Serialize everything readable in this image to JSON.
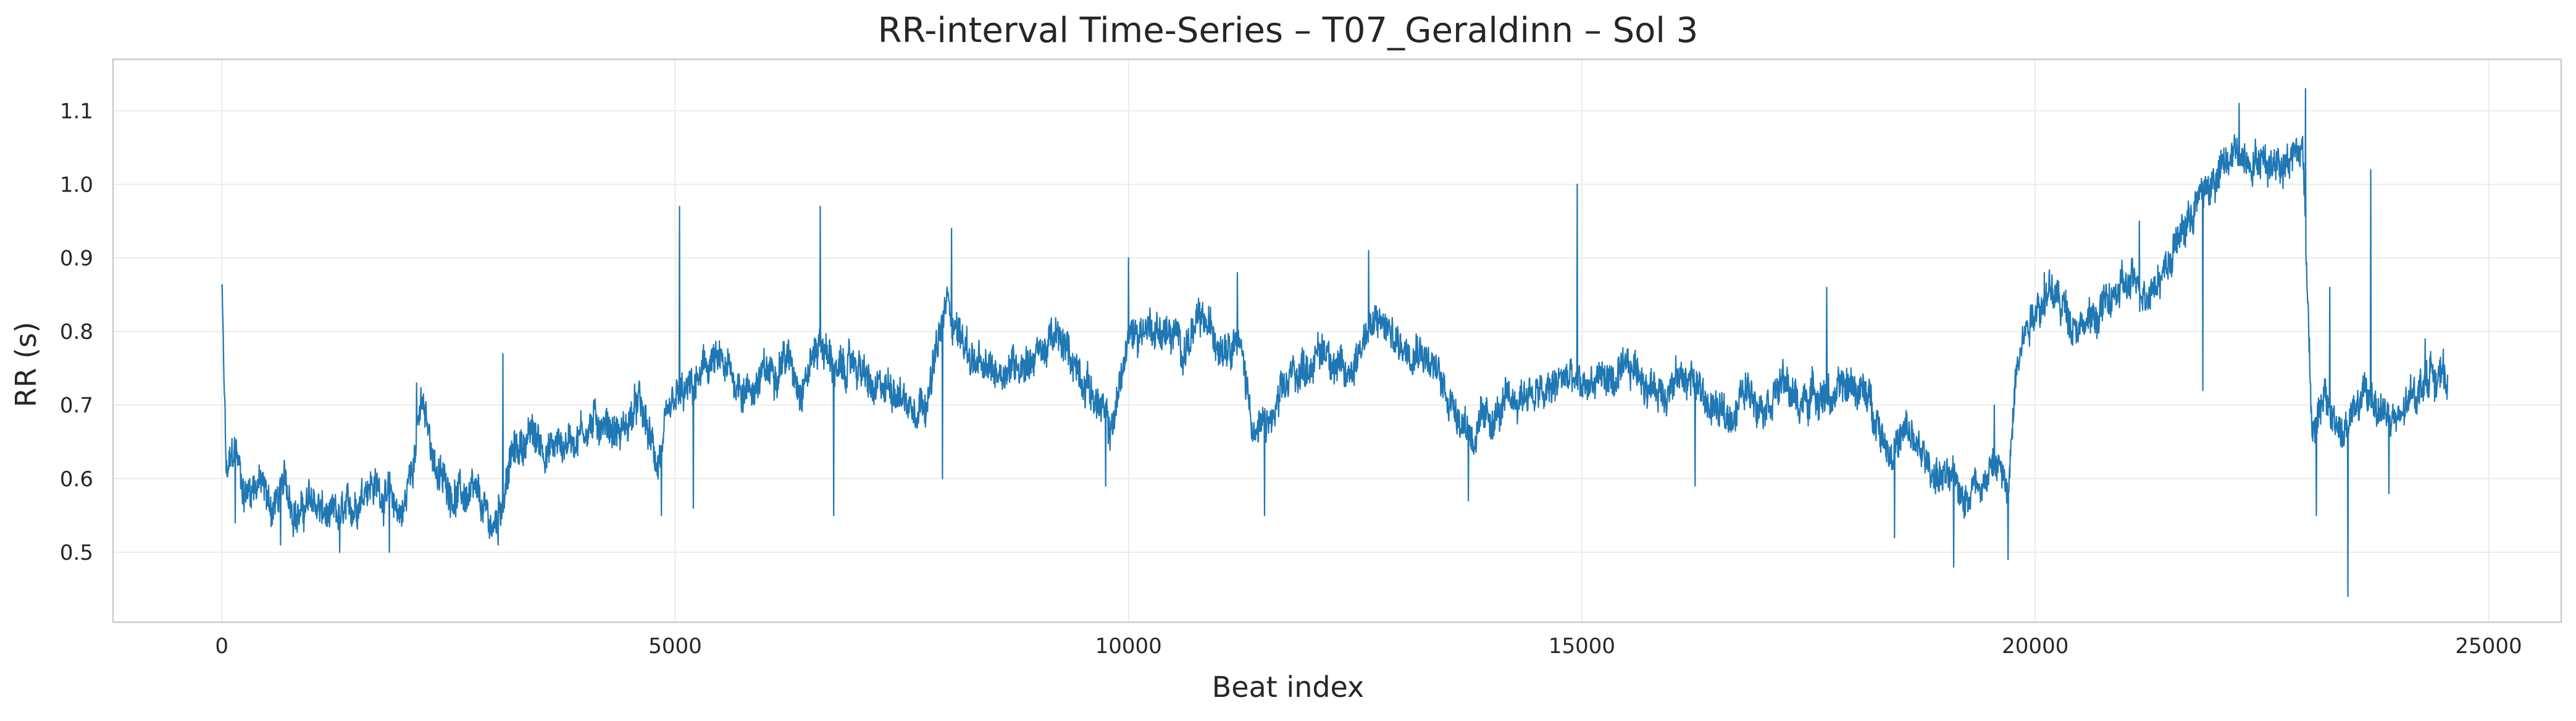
{
  "chart_data": {
    "type": "line",
    "title": "RR-interval Time-Series – T07_Geraldinn – Sol 3",
    "xlabel": "Beat index",
    "ylabel": "RR (s)",
    "xlim": [
      -1200,
      25800
    ],
    "ylim": [
      0.405,
      1.17
    ],
    "x_ticks": [
      0,
      5000,
      10000,
      15000,
      20000,
      25000
    ],
    "x_tick_labels": [
      "0",
      "5000",
      "10000",
      "15000",
      "20000",
      "25000"
    ],
    "y_ticks": [
      0.5,
      0.6,
      0.7,
      0.8,
      0.9,
      1.0,
      1.1
    ],
    "y_tick_labels": [
      "0.5",
      "0.6",
      "0.7",
      "0.8",
      "0.9",
      "1.0",
      "1.1"
    ],
    "grid": true,
    "line_color": "#1f77b4",
    "series": [
      {
        "values_by_beat": [
          [
            0,
            0.86
          ],
          [
            50,
            0.6
          ],
          [
            150,
            0.64
          ],
          [
            250,
            0.58
          ],
          [
            400,
            0.6
          ],
          [
            550,
            0.56
          ],
          [
            700,
            0.59
          ],
          [
            850,
            0.55
          ],
          [
            1000,
            0.57
          ],
          [
            1200,
            0.54
          ],
          [
            1400,
            0.55
          ],
          [
            1600,
            0.6
          ],
          [
            1800,
            0.58
          ],
          [
            2000,
            0.55
          ],
          [
            2200,
            0.7
          ],
          [
            2400,
            0.6
          ],
          [
            2600,
            0.58
          ],
          [
            2800,
            0.57
          ],
          [
            3000,
            0.53
          ],
          [
            3200,
            0.63
          ],
          [
            3400,
            0.66
          ],
          [
            3600,
            0.64
          ],
          [
            3800,
            0.65
          ],
          [
            4000,
            0.67
          ],
          [
            4200,
            0.68
          ],
          [
            4400,
            0.66
          ],
          [
            4600,
            0.7
          ],
          [
            4800,
            0.62
          ],
          [
            5000,
            0.7
          ],
          [
            5200,
            0.72
          ],
          [
            5400,
            0.76
          ],
          [
            5600,
            0.74
          ],
          [
            5800,
            0.72
          ],
          [
            6000,
            0.74
          ],
          [
            6200,
            0.77
          ],
          [
            6400,
            0.73
          ],
          [
            6600,
            0.79
          ],
          [
            6800,
            0.74
          ],
          [
            7000,
            0.76
          ],
          [
            7200,
            0.71
          ],
          [
            7400,
            0.73
          ],
          [
            7600,
            0.7
          ],
          [
            7800,
            0.72
          ],
          [
            8000,
            0.84
          ],
          [
            8200,
            0.78
          ],
          [
            8400,
            0.74
          ],
          [
            8600,
            0.75
          ],
          [
            8800,
            0.76
          ],
          [
            9000,
            0.77
          ],
          [
            9200,
            0.79
          ],
          [
            9400,
            0.76
          ],
          [
            9600,
            0.72
          ],
          [
            9800,
            0.66
          ],
          [
            10000,
            0.79
          ],
          [
            10200,
            0.81
          ],
          [
            10400,
            0.8
          ],
          [
            10600,
            0.78
          ],
          [
            10800,
            0.81
          ],
          [
            11000,
            0.79
          ],
          [
            11200,
            0.8
          ],
          [
            11400,
            0.66
          ],
          [
            11600,
            0.68
          ],
          [
            11800,
            0.74
          ],
          [
            12000,
            0.76
          ],
          [
            12200,
            0.78
          ],
          [
            12400,
            0.73
          ],
          [
            12600,
            0.8
          ],
          [
            12800,
            0.81
          ],
          [
            13000,
            0.78
          ],
          [
            13200,
            0.79
          ],
          [
            13400,
            0.74
          ],
          [
            13600,
            0.7
          ],
          [
            13800,
            0.66
          ],
          [
            14000,
            0.68
          ],
          [
            14200,
            0.7
          ],
          [
            14400,
            0.72
          ],
          [
            14600,
            0.71
          ],
          [
            14800,
            0.74
          ],
          [
            15000,
            0.72
          ],
          [
            15200,
            0.74
          ],
          [
            15400,
            0.73
          ],
          [
            15600,
            0.75
          ],
          [
            15800,
            0.72
          ],
          [
            16000,
            0.73
          ],
          [
            16200,
            0.74
          ],
          [
            16400,
            0.7
          ],
          [
            16600,
            0.68
          ],
          [
            16800,
            0.72
          ],
          [
            17000,
            0.71
          ],
          [
            17200,
            0.73
          ],
          [
            17400,
            0.7
          ],
          [
            17600,
            0.72
          ],
          [
            17800,
            0.71
          ],
          [
            18000,
            0.73
          ],
          [
            18200,
            0.7
          ],
          [
            18400,
            0.64
          ],
          [
            18600,
            0.66
          ],
          [
            18800,
            0.62
          ],
          [
            19000,
            0.6
          ],
          [
            19200,
            0.58
          ],
          [
            19400,
            0.6
          ],
          [
            19600,
            0.62
          ],
          [
            19700,
            0.57
          ],
          [
            19800,
            0.78
          ],
          [
            20000,
            0.84
          ],
          [
            20200,
            0.85
          ],
          [
            20400,
            0.82
          ],
          [
            20600,
            0.81
          ],
          [
            20800,
            0.84
          ],
          [
            21000,
            0.86
          ],
          [
            21200,
            0.86
          ],
          [
            21400,
            0.88
          ],
          [
            21600,
            0.93
          ],
          [
            21800,
            0.98
          ],
          [
            22000,
            1.01
          ],
          [
            22200,
            1.04
          ],
          [
            22400,
            1.04
          ],
          [
            22600,
            1.03
          ],
          [
            22800,
            1.04
          ],
          [
            22950,
            1.05
          ],
          [
            23050,
            0.68
          ],
          [
            23200,
            0.7
          ],
          [
            23400,
            0.66
          ],
          [
            23600,
            0.71
          ],
          [
            23800,
            0.7
          ],
          [
            24000,
            0.67
          ],
          [
            24200,
            0.72
          ],
          [
            24400,
            0.75
          ],
          [
            24550,
            0.73
          ]
        ],
        "peaks": [
          [
            0,
            0.86
          ],
          [
            2150,
            0.73
          ],
          [
            3100,
            0.77
          ],
          [
            5050,
            0.97
          ],
          [
            6600,
            0.97
          ],
          [
            8050,
            0.94
          ],
          [
            10000,
            0.9
          ],
          [
            11200,
            0.88
          ],
          [
            12650,
            0.91
          ],
          [
            14950,
            1.0
          ],
          [
            17700,
            0.86
          ],
          [
            19550,
            0.7
          ],
          [
            20100,
            0.88
          ],
          [
            21150,
            0.95
          ],
          [
            22250,
            1.11
          ],
          [
            22980,
            1.13
          ],
          [
            23250,
            0.86
          ],
          [
            23700,
            1.02
          ],
          [
            24300,
            0.79
          ]
        ],
        "troughs": [
          [
            150,
            0.54
          ],
          [
            650,
            0.51
          ],
          [
            1300,
            0.5
          ],
          [
            1850,
            0.5
          ],
          [
            3050,
            0.51
          ],
          [
            4850,
            0.55
          ],
          [
            5200,
            0.56
          ],
          [
            6750,
            0.55
          ],
          [
            7950,
            0.6
          ],
          [
            9750,
            0.59
          ],
          [
            11500,
            0.55
          ],
          [
            13750,
            0.57
          ],
          [
            16250,
            0.59
          ],
          [
            18450,
            0.52
          ],
          [
            19100,
            0.48
          ],
          [
            19700,
            0.49
          ],
          [
            21850,
            0.72
          ],
          [
            23100,
            0.55
          ],
          [
            23450,
            0.44
          ],
          [
            23900,
            0.58
          ]
        ]
      }
    ]
  }
}
